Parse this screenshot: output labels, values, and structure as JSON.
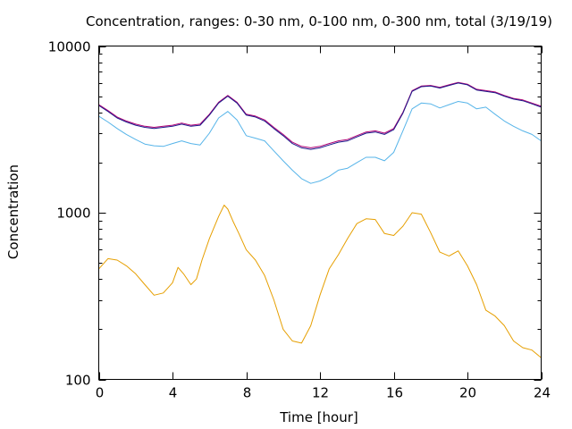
{
  "chart_data": {
    "type": "line",
    "title": "Concentration, ranges: 0-30 nm, 0-100 nm, 0-300 nm, total (3/19/19)",
    "xlabel": "Time [hour]",
    "ylabel": "Concentration",
    "xlim": [
      0,
      24
    ],
    "ylim": [
      100,
      10000
    ],
    "yscale": "log",
    "grid": false,
    "legend": "none",
    "x_ticks": [
      {
        "value": 0,
        "label": "0"
      },
      {
        "value": 4,
        "label": "4"
      },
      {
        "value": 8,
        "label": "8"
      },
      {
        "value": 12,
        "label": "12"
      },
      {
        "value": 16,
        "label": "16"
      },
      {
        "value": 20,
        "label": "20"
      },
      {
        "value": 24,
        "label": "24"
      }
    ],
    "y_ticks": [
      {
        "value": 100,
        "label": "100"
      },
      {
        "value": 1000,
        "label": "1000"
      },
      {
        "value": 10000,
        "label": "10000"
      }
    ],
    "series": [
      {
        "color": "#e69f00",
        "x": [
          0,
          0.5,
          1,
          1.5,
          2,
          2.5,
          3,
          3.5,
          4,
          4.3,
          4.6,
          5,
          5.3,
          5.6,
          6,
          6.5,
          6.8,
          7,
          7.3,
          7.6,
          8,
          8.5,
          9,
          9.5,
          10,
          10.5,
          11,
          11.5,
          12,
          12.5,
          13,
          13.5,
          14,
          14.5,
          15,
          15.5,
          16,
          16.5,
          17,
          17.5,
          18,
          18.5,
          19,
          19.5,
          20,
          20.5,
          21,
          21.5,
          22,
          22.5,
          23,
          23.5,
          24
        ],
        "y": [
          460,
          530,
          520,
          480,
          430,
          370,
          320,
          330,
          380,
          470,
          430,
          370,
          400,
          520,
          700,
          950,
          1110,
          1050,
          880,
          750,
          600,
          520,
          420,
          300,
          200,
          170,
          165,
          210,
          320,
          460,
          560,
          700,
          860,
          920,
          910,
          750,
          730,
          830,
          1000,
          980,
          760,
          580,
          550,
          590,
          480,
          370,
          260,
          240,
          210,
          170,
          155,
          150,
          135
        ]
      },
      {
        "color": "#56b4e9",
        "x": [
          0,
          0.5,
          1,
          1.5,
          2,
          2.5,
          3,
          3.5,
          4,
          4.5,
          5,
          5.5,
          6,
          6.5,
          7,
          7.5,
          8,
          8.5,
          9,
          9.5,
          10,
          10.5,
          11,
          11.5,
          12,
          12.5,
          13,
          13.5,
          14,
          14.5,
          15,
          15.5,
          16,
          16.5,
          17,
          17.5,
          18,
          18.5,
          19,
          19.5,
          20,
          20.5,
          21,
          21.5,
          22,
          22.5,
          23,
          23.5,
          24
        ],
        "y": [
          3800,
          3500,
          3200,
          2950,
          2750,
          2580,
          2520,
          2500,
          2600,
          2700,
          2600,
          2550,
          3000,
          3700,
          4050,
          3600,
          2900,
          2800,
          2700,
          2350,
          2050,
          1800,
          1600,
          1500,
          1550,
          1650,
          1800,
          1850,
          2000,
          2150,
          2150,
          2050,
          2300,
          3100,
          4200,
          4550,
          4500,
          4250,
          4450,
          4650,
          4550,
          4200,
          4300,
          3900,
          3550,
          3300,
          3100,
          2950,
          2700
        ]
      },
      {
        "color": "#b00074",
        "x": [
          0,
          0.5,
          1,
          1.5,
          2,
          2.5,
          3,
          3.5,
          4,
          4.5,
          5,
          5.5,
          6,
          6.5,
          7,
          7.5,
          8,
          8.5,
          9,
          9.5,
          10,
          10.5,
          11,
          11.5,
          12,
          12.5,
          13,
          13.5,
          14,
          14.5,
          15,
          15.5,
          16,
          16.5,
          17,
          17.5,
          18,
          18.5,
          19,
          19.5,
          20,
          20.5,
          21,
          21.5,
          22,
          22.5,
          23,
          23.5,
          24
        ],
        "y": [
          4450,
          4100,
          3750,
          3550,
          3400,
          3300,
          3250,
          3300,
          3350,
          3450,
          3350,
          3400,
          3900,
          4600,
          5050,
          4600,
          3900,
          3800,
          3600,
          3250,
          2950,
          2650,
          2500,
          2450,
          2500,
          2600,
          2700,
          2750,
          2900,
          3050,
          3100,
          3000,
          3200,
          4000,
          5400,
          5750,
          5800,
          5650,
          5850,
          6050,
          5900,
          5500,
          5400,
          5300,
          5050,
          4850,
          4750,
          4550,
          4350
        ]
      },
      {
        "color": "#1a1a8c",
        "x": [
          0,
          0.5,
          1,
          1.5,
          2,
          2.5,
          3,
          3.5,
          4,
          4.5,
          5,
          5.5,
          6,
          6.5,
          7,
          7.5,
          8,
          8.5,
          9,
          9.5,
          10,
          10.5,
          11,
          11.5,
          12,
          12.5,
          13,
          13.5,
          14,
          14.5,
          15,
          15.5,
          16,
          16.5,
          17,
          17.5,
          18,
          18.5,
          19,
          19.5,
          20,
          20.5,
          21,
          21.5,
          22,
          22.5,
          23,
          23.5,
          24
        ],
        "y": [
          4400,
          4050,
          3700,
          3500,
          3350,
          3250,
          3200,
          3250,
          3300,
          3400,
          3300,
          3350,
          3850,
          4550,
          5000,
          4550,
          3850,
          3750,
          3550,
          3200,
          2900,
          2600,
          2450,
          2400,
          2450,
          2550,
          2650,
          2700,
          2850,
          3000,
          3050,
          2950,
          3150,
          3950,
          5350,
          5700,
          5750,
          5600,
          5800,
          6000,
          5850,
          5450,
          5350,
          5250,
          5000,
          4800,
          4700,
          4500,
          4300
        ]
      }
    ]
  }
}
